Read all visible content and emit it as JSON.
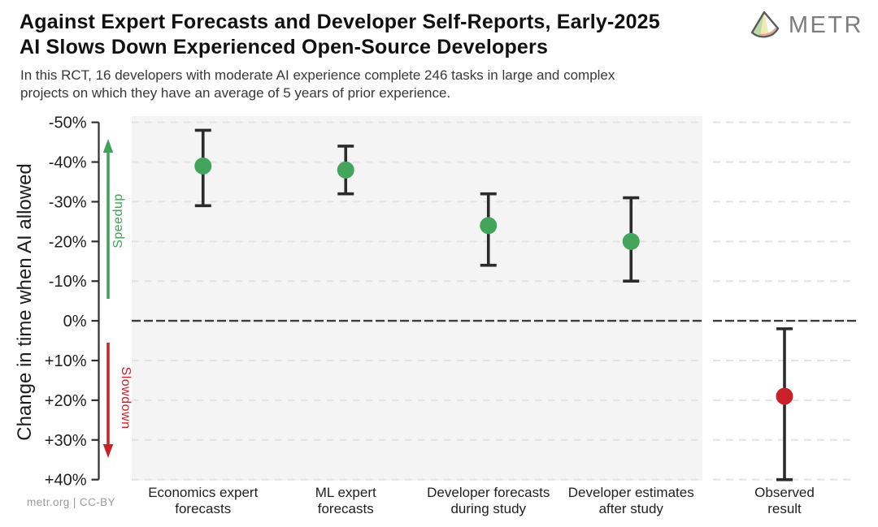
{
  "header": {
    "title_line1": "Against Expert Forecasts and Developer Self-Reports, Early-2025",
    "title_line2": "AI Slows Down Experienced Open-Source Developers",
    "subtitle_line1": "In this RCT, 16 developers with moderate AI experience complete 246 tasks in large and complex",
    "subtitle_line2": "projects on which they have an average of 5 years of prior experience.",
    "logo_text": "METR"
  },
  "footer": {
    "text": "metr.org  |  CC-BY"
  },
  "chart_data": {
    "type": "scatter",
    "title": "Against Expert Forecasts and Developer Self-Reports, Early-2025 AI Slows Down Experienced Open-Source Developers",
    "ylabel": "Change in time when AI allowed",
    "ylim_top": -50,
    "ylim_bottom": 40,
    "grid": "horizontal-dashed",
    "legend": "none",
    "yticks": [
      {
        "value": -50,
        "label": "-50%"
      },
      {
        "value": -40,
        "label": "-40%"
      },
      {
        "value": -30,
        "label": "-30%"
      },
      {
        "value": -20,
        "label": "-20%"
      },
      {
        "value": -10,
        "label": "-10%"
      },
      {
        "value": 0,
        "label": "0%"
      },
      {
        "value": 10,
        "label": "+10%"
      },
      {
        "value": 20,
        "label": "+20%"
      },
      {
        "value": 30,
        "label": "+30%"
      },
      {
        "value": 40,
        "label": "+40%"
      }
    ],
    "zero_line_value": 0,
    "direction_annotations": [
      {
        "text": "Speedup",
        "direction": "up",
        "color": "#3fa25a"
      },
      {
        "text": "Slowdown",
        "direction": "down",
        "color": "#cb2026"
      }
    ],
    "panels": [
      {
        "name": "forecasts",
        "background": "#f4f4f4"
      },
      {
        "name": "observed",
        "background": "#ffffff"
      }
    ],
    "points": [
      {
        "id": "economics-expert-forecasts",
        "category_lines": [
          "Economics expert",
          "forecasts"
        ],
        "value": -39,
        "ci_low": -48,
        "ci_high": -29,
        "color": "#43a55c",
        "panel": "forecasts"
      },
      {
        "id": "ml-expert-forecasts",
        "category_lines": [
          "ML expert",
          "forecasts"
        ],
        "value": -38,
        "ci_low": -44,
        "ci_high": -32,
        "color": "#43a55c",
        "panel": "forecasts"
      },
      {
        "id": "developer-forecasts-during-study",
        "category_lines": [
          "Developer forecasts",
          "during study"
        ],
        "value": -24,
        "ci_low": -32,
        "ci_high": -14,
        "color": "#43a55c",
        "panel": "forecasts"
      },
      {
        "id": "developer-estimates-after-study",
        "category_lines": [
          "Developer estimates",
          "after study"
        ],
        "value": -20,
        "ci_low": -31,
        "ci_high": -10,
        "color": "#43a55c",
        "panel": "forecasts"
      },
      {
        "id": "observed-result",
        "category_lines": [
          "Observed",
          "result"
        ],
        "value": 19,
        "ci_low": 2,
        "ci_high": 40,
        "color": "#c92127",
        "panel": "observed"
      }
    ],
    "colors": {
      "error_bar": "#2b2b2b",
      "gridline": "#e2e2e2",
      "zero_line": "#3d3d3d",
      "axis": "#2f2f2f",
      "tick_label": "#1e1e1e",
      "point_green": "#43a55c",
      "point_red": "#c92127"
    }
  }
}
